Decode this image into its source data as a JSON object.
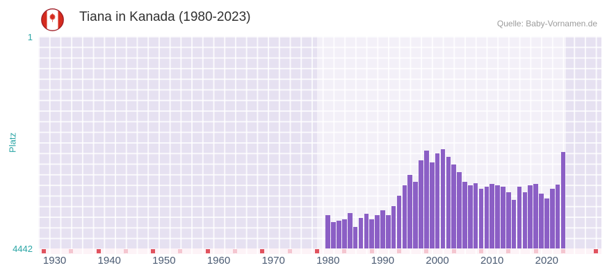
{
  "header": {
    "title": "Tiana in Kanada (1980-2023)",
    "source": "Quelle: Baby-Vornamen.de"
  },
  "flag": {
    "name": "canada-flag-icon",
    "red": "#d52b1e",
    "outline": "#9e1b24"
  },
  "chart_data": {
    "type": "bar",
    "title": "Tiana in Kanada (1980-2023)",
    "xlabel": "",
    "ylabel": "Platz",
    "y_axis": {
      "min": 1,
      "max": 4442,
      "inverted": true,
      "top_label": "1",
      "bottom_label": "4442"
    },
    "x_axis": {
      "range": [
        1927,
        2030
      ],
      "ticks": [
        1930,
        1940,
        1950,
        1960,
        1970,
        1980,
        1990,
        2000,
        2010,
        2020
      ]
    },
    "highlight_band": {
      "from": 1978,
      "to": 2023.5
    },
    "bar_color": "#8b5fc5",
    "grid": true,
    "legend": "none",
    "categories": [
      1980,
      1981,
      1982,
      1983,
      1984,
      1985,
      1986,
      1987,
      1988,
      1989,
      1990,
      1991,
      1992,
      1993,
      1994,
      1995,
      1996,
      1997,
      1998,
      1999,
      2000,
      2001,
      2002,
      2003,
      2004,
      2005,
      2006,
      2007,
      2008,
      2009,
      2010,
      2011,
      2012,
      2013,
      2014,
      2015,
      2016,
      2017,
      2018,
      2019,
      2020,
      2021,
      2022,
      2023
    ],
    "values": [
      3750,
      3890,
      3860,
      3830,
      3700,
      3990,
      3800,
      3720,
      3830,
      3750,
      3640,
      3740,
      3560,
      3340,
      3120,
      2910,
      3050,
      2600,
      2400,
      2640,
      2450,
      2370,
      2520,
      2680,
      2840,
      3050,
      3120,
      3080,
      3190,
      3150,
      3090,
      3120,
      3150,
      3270,
      3420,
      3150,
      3270,
      3120,
      3090,
      3300,
      3390,
      3200,
      3110,
      2430
    ],
    "baseline_marks": {
      "strong_color": "#e0535f",
      "light_color": "#f4c6d0",
      "strong_years": [
        1928,
        1938,
        1948,
        1958,
        1968,
        1978,
        2029
      ],
      "light_years": [
        1933,
        1943,
        1953,
        1963,
        1973,
        1983,
        1988,
        1993,
        1998,
        2003,
        2008,
        2013,
        2018,
        2023
      ]
    }
  }
}
